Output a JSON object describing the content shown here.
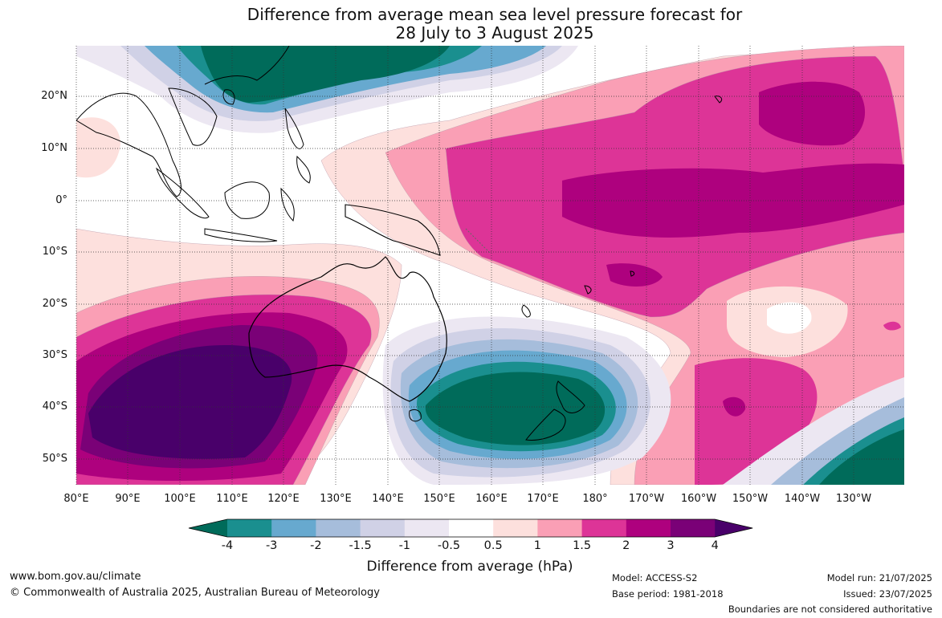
{
  "title_line1": "Difference from average mean sea level pressure forecast for",
  "title_line2": "28 July to 3 August 2025",
  "lat_labels": [
    "20°N",
    "10°N",
    "0°",
    "10°S",
    "20°S",
    "30°S",
    "40°S",
    "50°S"
  ],
  "lon_labels": [
    "80°E",
    "90°E",
    "100°E",
    "110°E",
    "120°E",
    "130°E",
    "140°E",
    "150°E",
    "160°E",
    "170°E",
    "180°",
    "170°W",
    "160°W",
    "150°W",
    "140°W",
    "130°W"
  ],
  "colorbar": {
    "labels": [
      "-4",
      "-3",
      "-2",
      "-1.5",
      "-1",
      "-0.5",
      "0.5",
      "1",
      "1.5",
      "2",
      "3",
      "4"
    ],
    "colors": [
      "#006b5a",
      "#1a8f8f",
      "#67a9cf",
      "#a6bddb",
      "#d0d1e6",
      "#ece7f2",
      "#ffffff",
      "#fde0dd",
      "#fa9fb5",
      "#dd3497",
      "#ae017e",
      "#7a0177",
      "#49006a"
    ],
    "title": "Difference from average (hPa)"
  },
  "footer": {
    "url": "www.bom.gov.au/climate",
    "copyright": "© Commonwealth of Australia 2025, Australian Bureau of Meteorology",
    "model": "Model: ACCESS-S2",
    "base_period": "Base period: 1981-2018",
    "model_run": "Model run: 21/07/2025",
    "issued": "Issued: 23/07/2025",
    "disclaimer": "Boundaries are not considered authoritative"
  }
}
